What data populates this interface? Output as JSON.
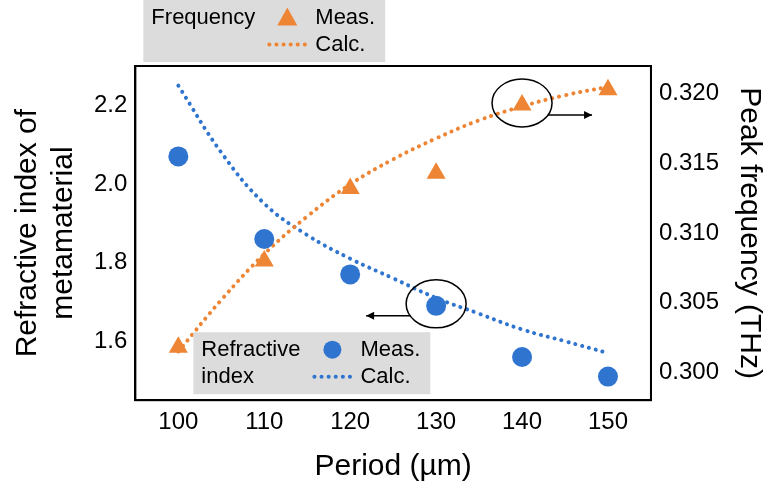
{
  "chart_data": {
    "type": "scatter",
    "xlabel": "Period (µm)",
    "ylabel": [
      "Refractive index of",
      "metamaterial"
    ],
    "y2label": "Peak frequency (THz)",
    "xlim": [
      95,
      155
    ],
    "xticks": [
      100,
      110,
      120,
      130,
      140,
      150
    ],
    "ylim": [
      1.45,
      2.3
    ],
    "yticks": [
      1.6,
      1.8,
      {
        "value": 2,
        "label": "2.0"
      },
      2.2
    ],
    "y2lim": [
      0.298,
      0.322
    ],
    "y2ticks": [
      {
        "value": 0.3,
        "label": "0.300"
      },
      0.305,
      {
        "value": 0.31,
        "label": "0.310"
      },
      0.315,
      {
        "value": 0.32,
        "label": "0.320"
      }
    ],
    "grid": false,
    "series": [
      {
        "name": "Meas.",
        "group": "Frequency",
        "axis": "y2",
        "type": "scatter",
        "marker": "triangle",
        "color": "#EE8534",
        "x": [
          100,
          110,
          120,
          130,
          140,
          150
        ],
        "values": [
          0.3018,
          0.308,
          0.3132,
          0.3143,
          0.3192,
          0.3203
        ]
      },
      {
        "name": "Calc.",
        "group": "Frequency",
        "axis": "y2",
        "type": "line",
        "line_style": "dotted",
        "color": "#EE8534",
        "x": [
          100,
          105,
          110,
          115,
          120,
          125,
          130,
          135,
          140,
          145,
          150
        ],
        "values": [
          0.3015,
          0.3052,
          0.3085,
          0.3112,
          0.3135,
          0.3153,
          0.3168,
          0.3181,
          0.3191,
          0.3199,
          0.3205
        ]
      },
      {
        "name": "Meas.",
        "group": "Refractive index",
        "axis": "y",
        "type": "scatter",
        "marker": "circle",
        "color": "#2F75D0",
        "x": [
          100,
          110,
          120,
          130,
          140,
          150
        ],
        "values": [
          2.07,
          1.86,
          1.77,
          1.69,
          1.56,
          1.51
        ]
      },
      {
        "name": "Calc.",
        "group": "Refractive index",
        "axis": "y",
        "type": "line",
        "line_style": "dotted",
        "color": "#2F75D0",
        "x": [
          100,
          105,
          110,
          115,
          120,
          125,
          130,
          135,
          140,
          145,
          150
        ],
        "values": [
          2.25,
          2.08,
          1.95,
          1.87,
          1.81,
          1.76,
          1.71,
          1.67,
          1.63,
          1.6,
          1.57
        ]
      }
    ]
  }
}
